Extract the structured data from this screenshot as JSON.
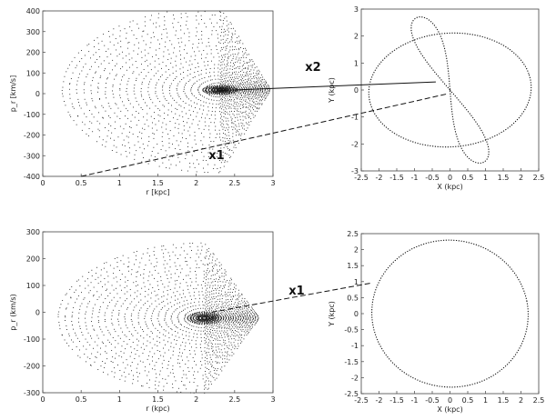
{
  "chart_data": [
    {
      "id": "sos-top",
      "type": "scatter",
      "xlabel": "r [kpc]",
      "ylabel": "p_r [km/s]",
      "xlim": [
        0,
        3
      ],
      "ylim": [
        -400,
        400
      ],
      "xticks": [
        "0",
        "0.5",
        "1",
        "1.5",
        "2",
        "2.5",
        "3"
      ],
      "yticks": [
        "-400",
        "-300",
        "-200",
        "-100",
        "0",
        "100",
        "200",
        "300",
        "400"
      ],
      "series": [
        {
          "kind": "surface-of-section",
          "center": [
            2.3,
            20
          ],
          "r_range": [
            0.25,
            2.95
          ],
          "pr_range": [
            -400,
            400
          ]
        }
      ]
    },
    {
      "id": "orbit-top",
      "type": "line",
      "xlabel": "X (kpc)",
      "ylabel": "Y (kpc)",
      "xlim": [
        -2.5,
        2.5
      ],
      "ylim": [
        -3,
        3
      ],
      "xticks": [
        "-2.5",
        "-2",
        "-1.5",
        "-1",
        "-0.5",
        "0",
        "0.5",
        "1",
        "1.5",
        "2",
        "2.5"
      ],
      "yticks": [
        "-3",
        "-2",
        "-1",
        "0",
        "1",
        "2",
        "3"
      ],
      "series": [
        {
          "name": "x1",
          "kind": "ellipse",
          "semi_x": 2.3,
          "semi_y": 2.1,
          "tilt_deg": 15
        },
        {
          "name": "x2",
          "kind": "figure-eight",
          "lobe_tips": [
            [
              -0.9,
              2.7
            ],
            [
              0.9,
              -2.7
            ]
          ]
        }
      ]
    },
    {
      "id": "sos-bottom",
      "type": "scatter",
      "xlabel": "r (kpc)",
      "ylabel": "p_r (km/s)",
      "xlim": [
        0,
        3
      ],
      "ylim": [
        -300,
        300
      ],
      "xticks": [
        "0",
        "0.5",
        "1",
        "1.5",
        "2",
        "2.5",
        "3"
      ],
      "yticks": [
        "-300",
        "-200",
        "-100",
        "0",
        "100",
        "200",
        "300"
      ],
      "series": [
        {
          "kind": "surface-of-section",
          "center": [
            2.1,
            -20
          ],
          "r_range": [
            0.2,
            2.95
          ],
          "pr_range": [
            -280,
            280
          ]
        }
      ]
    },
    {
      "id": "orbit-bottom",
      "type": "line",
      "xlabel": "X (kpc)",
      "ylabel": "Y (kpc)",
      "xlim": [
        -2.5,
        2.5
      ],
      "ylim": [
        -2.5,
        2.5
      ],
      "xticks": [
        "-2.5",
        "-2",
        "-1.5",
        "-1",
        "-0.5",
        "0",
        "0.5",
        "1",
        "1.5",
        "2",
        "2.5"
      ],
      "yticks": [
        "-2.5",
        "-2",
        "-1.5",
        "-1",
        "-0.5",
        "0",
        "0.5",
        "1",
        "1.5",
        "2",
        "2.5"
      ],
      "series": [
        {
          "name": "x1",
          "kind": "ellipse",
          "semi_x": 2.2,
          "semi_y": 2.3,
          "tilt_deg": 10
        }
      ]
    }
  ],
  "annotations": {
    "top_x2": "x2",
    "top_x1": "x1",
    "bottom_x1": "x1"
  },
  "colors": {
    "ink": "#111111",
    "frame": "#444444",
    "points": "#1a1a1a"
  }
}
